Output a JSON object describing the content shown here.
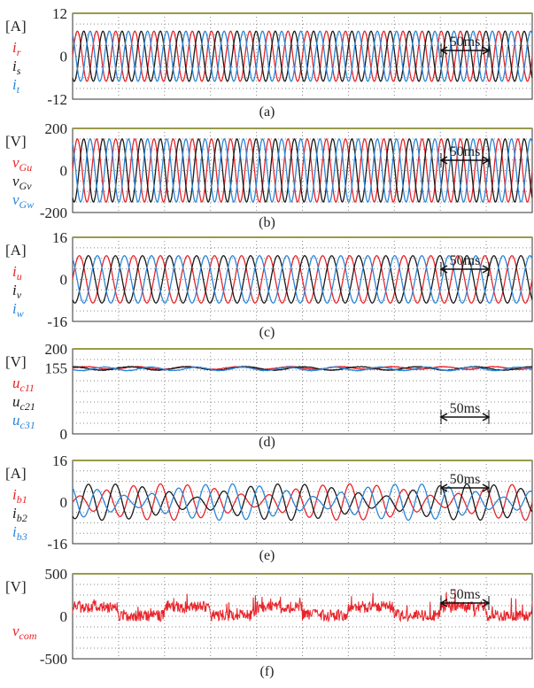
{
  "colors": {
    "red": "#e8242a",
    "black": "#1a1a1a",
    "blue": "#2b86d9"
  },
  "chart_data": [
    {
      "type": "line",
      "caption": "(a)",
      "unit": "[A]",
      "yticks": [
        "12",
        "0",
        "-12"
      ],
      "ylim": [
        -12,
        12
      ],
      "grid": true,
      "scale_bar": "50ms",
      "series": [
        {
          "name": "ir",
          "base": "i",
          "subscript": "r",
          "color": "red",
          "kind": "sine3",
          "amplitude": 7,
          "cycles": 24,
          "phase_deg": 0
        },
        {
          "name": "is",
          "base": "i",
          "subscript": "s",
          "color": "black",
          "kind": "sine3",
          "amplitude": 7,
          "cycles": 24,
          "phase_deg": -120
        },
        {
          "name": "it",
          "base": "i",
          "subscript": "t",
          "color": "blue",
          "kind": "sine3",
          "amplitude": 7,
          "cycles": 24,
          "phase_deg": 120
        }
      ]
    },
    {
      "type": "line",
      "caption": "(b)",
      "unit": "[V]",
      "yticks": [
        "200",
        "0",
        "-200"
      ],
      "ylim": [
        -200,
        200
      ],
      "grid": true,
      "scale_bar": "50ms",
      "series": [
        {
          "name": "vGu",
          "base": "v",
          "subscript": "Gu",
          "color": "red",
          "kind": "sine3",
          "amplitude": 150,
          "cycles": 24,
          "phase_deg": 0
        },
        {
          "name": "vGv",
          "base": "v",
          "subscript": "Gv",
          "color": "black",
          "kind": "sine3",
          "amplitude": 150,
          "cycles": 24,
          "phase_deg": -120
        },
        {
          "name": "vGw",
          "base": "v",
          "subscript": "Gw",
          "color": "blue",
          "kind": "sine3",
          "amplitude": 150,
          "cycles": 24,
          "phase_deg": 120
        }
      ]
    },
    {
      "type": "line",
      "caption": "(c)",
      "unit": "[A]",
      "yticks": [
        "16",
        "0",
        "-16"
      ],
      "ylim": [
        -16,
        16
      ],
      "grid": true,
      "scale_bar": "50ms",
      "series": [
        {
          "name": "iu",
          "base": "i",
          "subscript": "u",
          "color": "red",
          "kind": "sine3",
          "amplitude": 9,
          "cycles": 17,
          "phase_deg": 0
        },
        {
          "name": "iv",
          "base": "i",
          "subscript": "v",
          "color": "black",
          "kind": "sine3",
          "amplitude": 9,
          "cycles": 17,
          "phase_deg": -120
        },
        {
          "name": "iw",
          "base": "i",
          "subscript": "w",
          "color": "blue",
          "kind": "sine3",
          "amplitude": 9,
          "cycles": 17,
          "phase_deg": 120
        }
      ]
    },
    {
      "type": "line",
      "caption": "(d)",
      "unit": "[V]",
      "yticks": [
        "200",
        "155",
        "0"
      ],
      "ytick_values": [
        200,
        155,
        0
      ],
      "ylim": [
        0,
        200
      ],
      "grid": true,
      "scale_bar": "50ms",
      "series": [
        {
          "name": "uc11",
          "base": "u",
          "subscript": "c11",
          "color": "red",
          "kind": "dc",
          "level": 155,
          "ripple": 3,
          "cycles": 9,
          "phase_deg": 0
        },
        {
          "name": "uc21",
          "base": "u",
          "subscript": "c21",
          "color": "black",
          "kind": "dc",
          "level": 154,
          "ripple": 4,
          "cycles": 8,
          "phase_deg": 90
        },
        {
          "name": "uc31",
          "base": "u",
          "subscript": "c31",
          "color": "blue",
          "kind": "dc",
          "level": 153,
          "ripple": 4,
          "cycles": 10,
          "phase_deg": 200
        }
      ]
    },
    {
      "type": "line",
      "caption": "(e)",
      "unit": "[A]",
      "yticks": [
        "16",
        "0",
        "-16"
      ],
      "ylim": [
        -16,
        16
      ],
      "grid": true,
      "scale_bar": "50ms",
      "series": [
        {
          "name": "ib1",
          "base": "i",
          "subscript": "b1",
          "color": "red",
          "kind": "beat",
          "amplitude": 7,
          "cycles": 17,
          "phase_deg": 0,
          "envelope_cycles": 2.5,
          "envelope_phase_deg": 180
        },
        {
          "name": "ib2",
          "base": "i",
          "subscript": "b2",
          "color": "black",
          "kind": "beat",
          "amplitude": 7,
          "cycles": 17,
          "phase_deg": -120,
          "envelope_cycles": 2.5,
          "envelope_phase_deg": 60
        },
        {
          "name": "ib3",
          "base": "i",
          "subscript": "b3",
          "color": "blue",
          "kind": "beat",
          "amplitude": 7,
          "cycles": 17,
          "phase_deg": 120,
          "envelope_cycles": 2.5,
          "envelope_phase_deg": 300
        }
      ]
    },
    {
      "type": "line",
      "caption": "(f)",
      "unit": "[V]",
      "yticks": [
        "500",
        "0",
        "-500"
      ],
      "ylim": [
        -500,
        500
      ],
      "grid": true,
      "scale_bar": "50ms",
      "series": [
        {
          "name": "vcom",
          "base": "v",
          "subscript": "com",
          "color": "red",
          "kind": "noise",
          "level": 110,
          "spread": 70,
          "dips": 5
        }
      ]
    }
  ]
}
